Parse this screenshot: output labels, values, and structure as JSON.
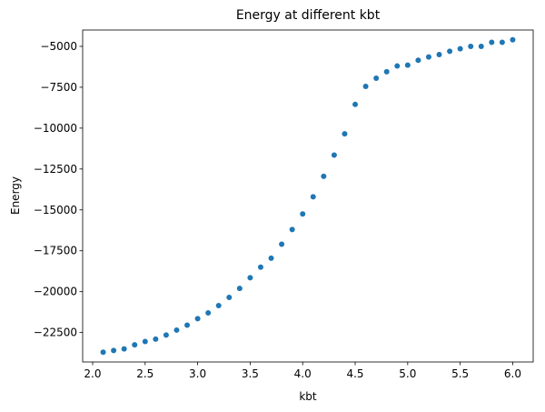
{
  "chart_data": {
    "type": "scatter",
    "title": "Energy at different kbt",
    "xlabel": "kbt",
    "ylabel": "Energy",
    "xlim": [
      1.905,
      6.195
    ],
    "ylim": [
      -24300,
      -4000
    ],
    "xticks": [
      2.0,
      2.5,
      3.0,
      3.5,
      4.0,
      4.5,
      5.0,
      5.5,
      6.0
    ],
    "xtick_labels": [
      "2.0",
      "2.5",
      "3.0",
      "3.5",
      "4.0",
      "4.5",
      "5.0",
      "5.5",
      "6.0"
    ],
    "yticks": [
      -22500,
      -20000,
      -17500,
      -15000,
      -12500,
      -10000,
      -7500,
      -5000
    ],
    "ytick_labels": [
      "−22500",
      "−20000",
      "−17500",
      "−15000",
      "−12500",
      "−10000",
      "−7500",
      "−5000"
    ],
    "grid": false,
    "marker_color": "#1f77b4",
    "x": [
      2.1,
      2.2,
      2.3,
      2.4,
      2.5,
      2.6,
      2.7,
      2.8,
      2.9,
      3.0,
      3.1,
      3.2,
      3.3,
      3.4,
      3.5,
      3.6,
      3.7,
      3.8,
      3.9,
      4.0,
      4.1,
      4.2,
      4.3,
      4.4,
      4.5,
      4.6,
      4.7,
      4.8,
      4.9,
      5.0,
      5.1,
      5.2,
      5.3,
      5.4,
      5.5,
      5.6,
      5.7,
      5.8,
      5.9,
      6.0
    ],
    "y": [
      -23700,
      -23600,
      -23500,
      -23250,
      -23050,
      -22900,
      -22650,
      -22350,
      -22050,
      -21650,
      -21300,
      -20850,
      -20350,
      -19800,
      -19150,
      -18500,
      -17950,
      -17100,
      -16200,
      -15250,
      -14200,
      -12950,
      -11650,
      -10350,
      -8550,
      -7450,
      -6950,
      -6550,
      -6200,
      -6150,
      -5850,
      -5650,
      -5500,
      -5300,
      -5150,
      -5000,
      -5000,
      -4750,
      -4750,
      -4600
    ]
  }
}
